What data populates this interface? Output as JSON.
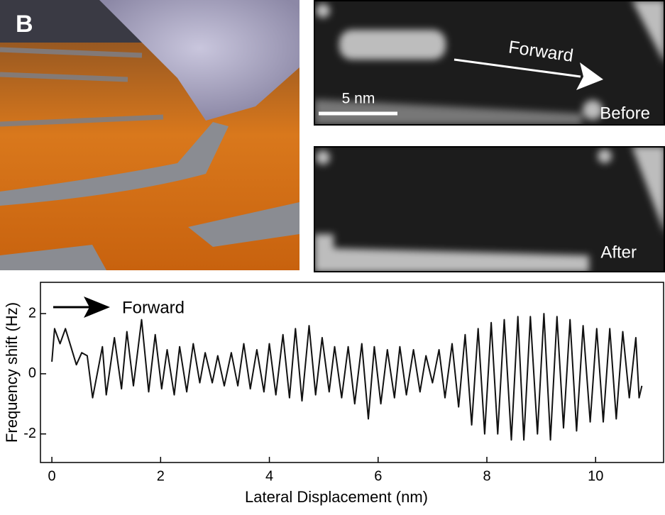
{
  "panel_label": "B",
  "images": {
    "scale_label": "5 nm",
    "arrow_label": "Forward",
    "top_label": "Before",
    "bottom_label": "After"
  },
  "chart_data": {
    "type": "line",
    "annotation": "Forward",
    "xlabel": "Lateral Displacement (nm)",
    "ylabel": "Frequency shift (Hz)",
    "xlim": [
      -0.21,
      11.25
    ],
    "ylim": [
      -2.95,
      3.04
    ],
    "xticks": [
      0,
      2,
      4,
      6,
      8,
      10
    ],
    "yticks": [
      -2,
      0,
      2
    ],
    "color": "#111111",
    "x": [
      0,
      0.05,
      0.15,
      0.25,
      0.35,
      0.45,
      0.55,
      0.65,
      0.75,
      0.93,
      1.0,
      1.15,
      1.28,
      1.38,
      1.5,
      1.65,
      1.78,
      1.9,
      2.02,
      2.12,
      2.25,
      2.35,
      2.48,
      2.6,
      2.72,
      2.82,
      2.95,
      3.05,
      3.17,
      3.3,
      3.42,
      3.53,
      3.65,
      3.77,
      3.9,
      4.0,
      4.12,
      4.25,
      4.37,
      4.48,
      4.6,
      4.73,
      4.85,
      4.97,
      5.1,
      5.2,
      5.33,
      5.45,
      5.57,
      5.7,
      5.82,
      5.93,
      6.05,
      6.17,
      6.3,
      6.4,
      6.52,
      6.65,
      6.77,
      6.88,
      7.0,
      7.12,
      7.23,
      7.36,
      7.48,
      7.6,
      7.72,
      7.84,
      7.96,
      8.08,
      8.2,
      8.32,
      8.45,
      8.57,
      8.68,
      8.8,
      8.93,
      9.05,
      9.17,
      9.29,
      9.41,
      9.53,
      9.65,
      9.77,
      9.9,
      10.02,
      10.14,
      10.26,
      10.38,
      10.5,
      10.62,
      10.74,
      10.8,
      10.85
    ],
    "values": [
      0.4,
      1.5,
      1.0,
      1.5,
      0.9,
      0.3,
      0.7,
      0.6,
      -0.8,
      0.9,
      -0.7,
      1.2,
      -0.5,
      1.4,
      -0.4,
      1.8,
      -0.6,
      1.3,
      -0.5,
      0.8,
      -0.7,
      0.9,
      -0.6,
      1.0,
      -0.3,
      0.7,
      -0.3,
      0.6,
      -0.4,
      0.7,
      -0.4,
      1.0,
      -0.5,
      0.8,
      -0.6,
      1.0,
      -0.7,
      1.3,
      -0.8,
      1.5,
      -0.9,
      1.6,
      -0.7,
      1.2,
      -0.6,
      0.9,
      -0.8,
      0.9,
      -1.0,
      1.0,
      -1.5,
      0.9,
      -1.0,
      0.8,
      -0.8,
      0.9,
      -0.7,
      0.8,
      -0.6,
      0.6,
      -0.3,
      0.8,
      -0.8,
      1.0,
      -1.1,
      1.3,
      -1.7,
      1.5,
      -2.0,
      1.7,
      -2.0,
      1.8,
      -2.2,
      1.9,
      -2.2,
      1.9,
      -2.0,
      2.0,
      -2.2,
      1.9,
      -1.8,
      1.8,
      -1.9,
      1.6,
      -1.6,
      1.5,
      -1.6,
      1.5,
      -1.5,
      1.4,
      -0.8,
      1.2,
      -0.8,
      -0.4
    ]
  }
}
